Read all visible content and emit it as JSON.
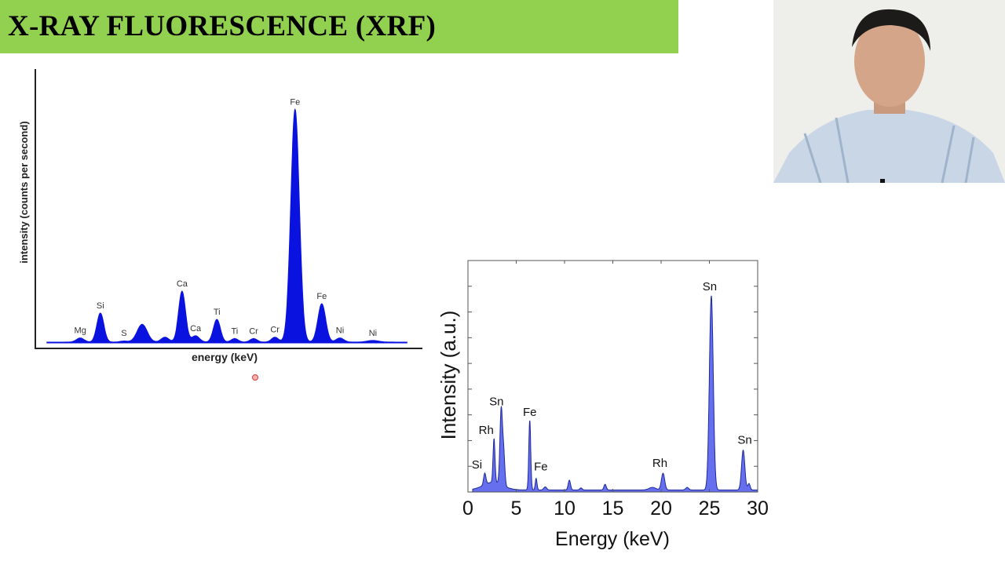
{
  "slide": {
    "title": "X-RAY FLUORESCENCE (XRF)"
  },
  "colors": {
    "title_bar": "#92d050",
    "left_fill": "#0a12e0",
    "right_fill": "#6670ee",
    "right_line": "#1e2a9a"
  },
  "chart_data": [
    {
      "type": "area",
      "xlabel": "energy (keV)",
      "ylabel": "intensity (counts per second)",
      "xlim": [
        0,
        100
      ],
      "ylim": [
        0,
        100
      ],
      "x_ticks": false,
      "y_ticks": false,
      "grid": false,
      "peaks": [
        {
          "label": "Mg",
          "x": 11.6,
          "height": 1.5,
          "width": 1.0
        },
        {
          "label": "Si",
          "x": 16.8,
          "height": 10.6,
          "width": 0.9
        },
        {
          "label": "S",
          "x": 22.9,
          "height": 0.4,
          "width": 1.0
        },
        {
          "label": "",
          "x": 27.6,
          "height": 6.5,
          "width": 1.3
        },
        {
          "label": "",
          "x": 33.5,
          "height": 1.8,
          "width": 1.0
        },
        {
          "label": "Ca",
          "x": 37.9,
          "height": 18.6,
          "width": 0.9
        },
        {
          "label": "Ca",
          "x": 41.4,
          "height": 2.3,
          "width": 1.0
        },
        {
          "label": "Ti",
          "x": 46.9,
          "height": 8.3,
          "width": 0.9
        },
        {
          "label": "Ti",
          "x": 51.5,
          "height": 1.3,
          "width": 0.9
        },
        {
          "label": "Cr",
          "x": 56.4,
          "height": 1.3,
          "width": 0.9
        },
        {
          "label": "Cr",
          "x": 61.9,
          "height": 1.8,
          "width": 0.9
        },
        {
          "label": "Fe",
          "x": 67.1,
          "height": 85,
          "width": 1.1
        },
        {
          "label": "Fe",
          "x": 74.0,
          "height": 14,
          "width": 1.0
        },
        {
          "label": "Ni",
          "x": 78.7,
          "height": 1.5,
          "width": 1.0
        },
        {
          "label": "Ni",
          "x": 87.2,
          "height": 0.6,
          "width": 1.5
        }
      ]
    },
    {
      "type": "area",
      "xlabel": "Energy (keV)",
      "ylabel": "Intensity (a.u.)",
      "xlim": [
        0,
        30
      ],
      "ylim": [
        0,
        0.9
      ],
      "x_tick_labels": [
        "0",
        "5",
        "10",
        "15",
        "20",
        "25",
        "30"
      ],
      "y_tick_labels": false,
      "grid": false,
      "peaks": [
        {
          "label": "Si",
          "x": 1.74,
          "height": 0.045,
          "width": 0.12
        },
        {
          "label": "Rh",
          "x": 2.7,
          "height": 0.17,
          "width": 0.1
        },
        {
          "label": "Sn",
          "x": 3.44,
          "height": 0.29,
          "width": 0.13
        },
        {
          "label": "",
          "x": 3.7,
          "height": 0.12,
          "width": 0.12
        },
        {
          "label": "Fe",
          "x": 6.4,
          "height": 0.27,
          "width": 0.1
        },
        {
          "label": "Fe",
          "x": 7.06,
          "height": 0.045,
          "width": 0.09
        },
        {
          "label": "",
          "x": 8.0,
          "height": 0.012,
          "width": 0.15
        },
        {
          "label": "",
          "x": 10.5,
          "height": 0.038,
          "width": 0.12
        },
        {
          "label": "",
          "x": 11.7,
          "height": 0.008,
          "width": 0.12
        },
        {
          "label": "",
          "x": 14.2,
          "height": 0.022,
          "width": 0.12
        },
        {
          "label": "",
          "x": 19.1,
          "height": 0.01,
          "width": 0.35
        },
        {
          "label": "Rh",
          "x": 20.2,
          "height": 0.065,
          "width": 0.17
        },
        {
          "label": "",
          "x": 22.7,
          "height": 0.01,
          "width": 0.15
        },
        {
          "label": "Sn",
          "x": 25.2,
          "height": 0.755,
          "width": 0.2
        },
        {
          "label": "Sn",
          "x": 28.5,
          "height": 0.155,
          "width": 0.17
        },
        {
          "label": "",
          "x": 29.1,
          "height": 0.025,
          "width": 0.12
        }
      ]
    }
  ]
}
